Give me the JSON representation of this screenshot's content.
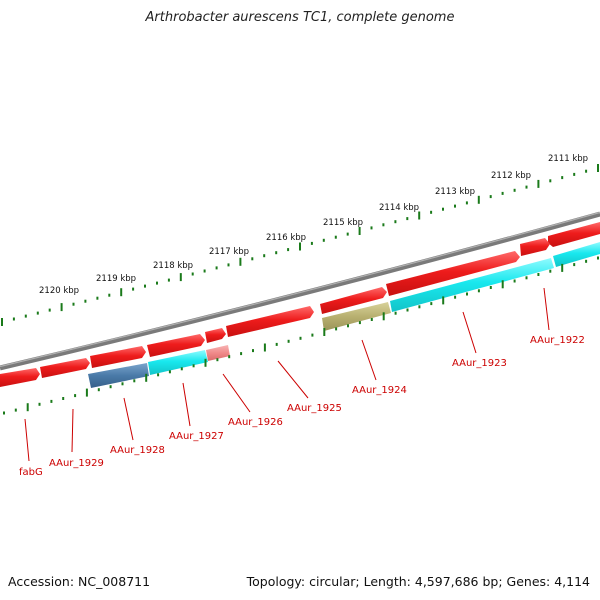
{
  "title": "Arthrobacter aurescens TC1, complete genome",
  "accession": "Accession: NC_008711",
  "topology": "Topology: circular; Length: 4,597,686 bp; Genes: 4,114",
  "colors": {
    "backbone": "#8a8a8a",
    "ticks": "#1a7a1a",
    "gene_red": "#ee1c1c",
    "gene_pink": "#f08a8a",
    "gene_cyan": "#19e8ee",
    "gene_blue": "#4a7aa8",
    "gene_olive": "#b8b070",
    "label": "#cc0000"
  },
  "scale_labels": [
    "2111 kbp",
    "2112 kbp",
    "2113 kbp",
    "2114 kbp",
    "2115 kbp",
    "2116 kbp",
    "2117 kbp",
    "2118 kbp",
    "2119 kbp",
    "2120 kbp"
  ],
  "gene_labels": [
    "AAur_1922",
    "AAur_1923",
    "AAur_1924",
    "AAur_1925",
    "AAur_1926",
    "AAur_1927",
    "AAur_1928",
    "AAur_1929",
    "fabG"
  ]
}
